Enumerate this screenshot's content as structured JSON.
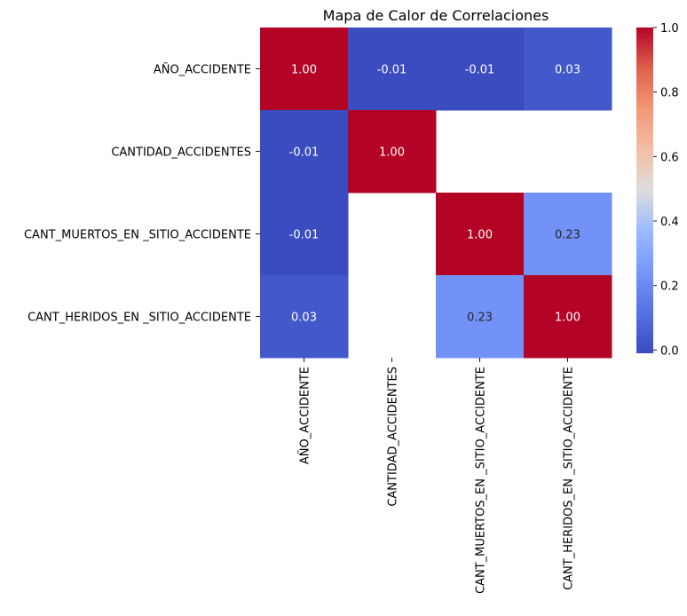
{
  "chart_data": {
    "type": "heatmap",
    "title": "Mapa de Calor de Correlaciones",
    "xlabel": "",
    "ylabel": "",
    "colormap": "coolwarm",
    "row_labels": [
      "AÑO_ACCIDENTE",
      "CANTIDAD_ACCIDENTES",
      "CANT_MUERTOS_EN _SITIO_ACCIDENTE",
      "CANT_HERIDOS_EN _SITIO_ACCIDENTE"
    ],
    "col_labels": [
      "AÑO_ACCIDENTE",
      "CANTIDAD_ACCIDENTES",
      "CANT_MUERTOS_EN _SITIO_ACCIDENTE",
      "CANT_HERIDOS_EN _SITIO_ACCIDENTE"
    ],
    "values": [
      [
        1.0,
        -0.01,
        -0.01,
        0.03
      ],
      [
        -0.01,
        1.0,
        null,
        null
      ],
      [
        -0.01,
        null,
        1.0,
        0.23
      ],
      [
        0.03,
        null,
        0.23,
        1.0
      ]
    ],
    "annotations": [
      [
        "1.00",
        "-0.01",
        "-0.01",
        "0.03"
      ],
      [
        "-0.01",
        "1.00",
        "",
        ""
      ],
      [
        "-0.01",
        "",
        "1.00",
        "0.23"
      ],
      [
        "0.03",
        "",
        "0.23",
        "1.00"
      ]
    ],
    "colorbar": {
      "vmin": -0.01,
      "vmax": 1.0,
      "ticks": [
        0.0,
        0.2,
        0.4,
        0.6,
        0.8,
        1.0
      ],
      "tick_labels": [
        "0.0",
        "0.2",
        "0.4",
        "0.6",
        "0.8",
        "1.0"
      ]
    },
    "colors": {
      "low": "#3b4cc0",
      "mid": "#dddddd",
      "high": "#b40426",
      "annotation_text_dark_bg": "#ffffff",
      "annotation_text_light_bg": "#262626"
    }
  }
}
